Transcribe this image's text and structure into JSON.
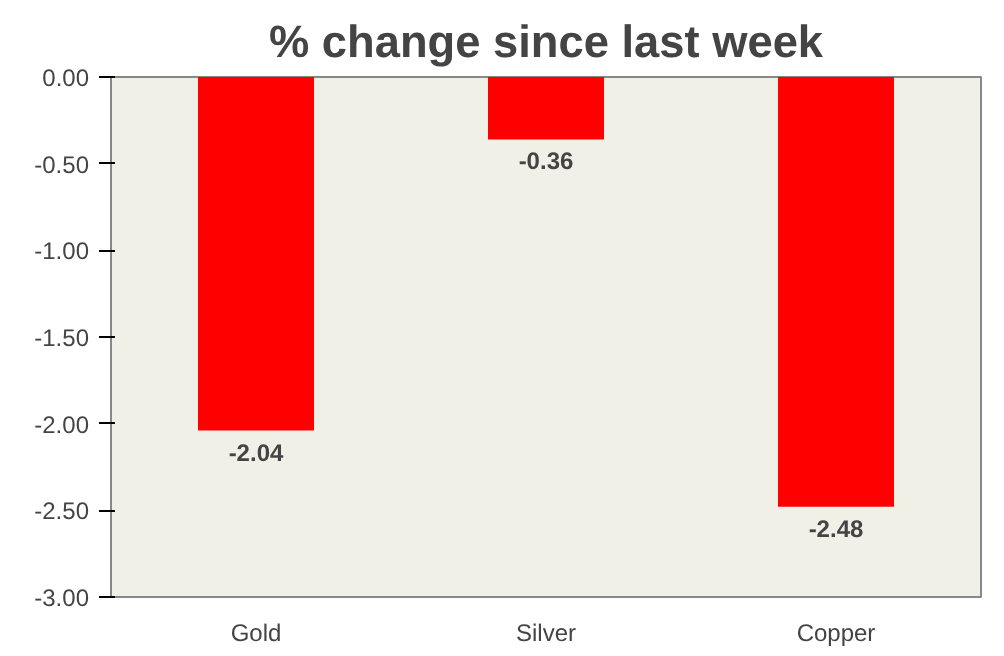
{
  "chart_data": {
    "type": "bar",
    "title": "% change since last week",
    "categories": [
      "Gold",
      "Silver",
      "Copper"
    ],
    "values": [
      -2.04,
      -0.36,
      -2.48
    ],
    "color": "#ff0000",
    "ylim": [
      -3.0,
      0.0
    ],
    "yticks": [
      {
        "value": 0.0,
        "label": "0.00"
      },
      {
        "value": -0.5,
        "label": "-0.50"
      },
      {
        "value": -1.0,
        "label": "-1.00"
      },
      {
        "value": -1.5,
        "label": "-1.50"
      },
      {
        "value": -2.0,
        "label": "-2.00"
      },
      {
        "value": -2.5,
        "label": "-2.50"
      },
      {
        "value": -3.0,
        "label": "-3.00"
      }
    ],
    "data_labels": true,
    "grid": false
  }
}
